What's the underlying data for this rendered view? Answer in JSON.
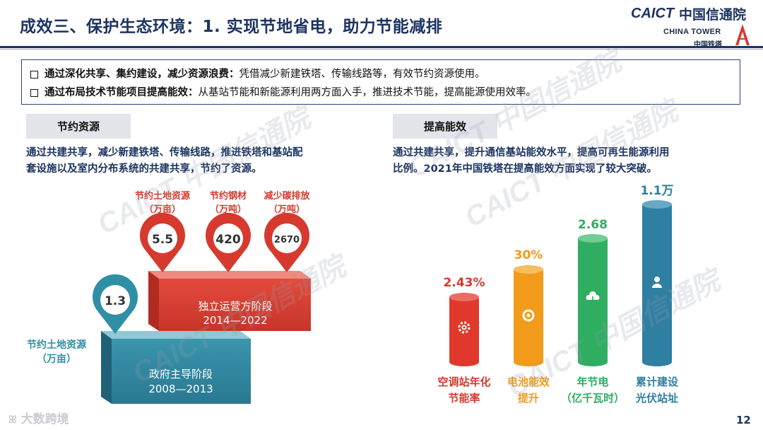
{
  "header": {
    "title": "成效三、保护生态环境：1. 实现节地省电，助力节能减排",
    "logo_caict": "CAICT",
    "logo_caict_cn": "中国信通院",
    "logo_tower": "CHINA TOWER",
    "logo_tower_cn": "中国铁塔"
  },
  "summary": {
    "items": [
      {
        "bold": "通过深化共享、集约建设，减少资源浪费：",
        "text": "凭借减少新建铁塔、传输线路等，有效节约资源使用。"
      },
      {
        "bold": "通过布局技术节能项目提高能效：",
        "text": "从基站节能和新能源利用两方面入手，推进技术节能，提高能源使用效率。"
      }
    ]
  },
  "left": {
    "tag": "节约资源",
    "text1": "通过共建共享，减少新建铁塔、传输线路，推进铁塔和基站配",
    "text2": "套设施以及室内分布系统的共建共享，节约了资源。",
    "stage_high": {
      "line1": "独立运营方阶段",
      "line2": "2014—2022"
    },
    "stage_low": {
      "line1": "政府主导阶段",
      "line2": "2008—2013"
    },
    "pins_high": [
      {
        "label1": "节约土地资源",
        "label2": "（万亩）",
        "value": "5.5"
      },
      {
        "label1": "节约钢材",
        "label2": "（万吨）",
        "value": "420"
      },
      {
        "label1": "减少碳排放",
        "label2": "（万吨）",
        "value": "2670"
      }
    ],
    "pin_low": {
      "label1": "节约土地资源",
      "label2": "（万亩）",
      "value": "1.3"
    }
  },
  "right": {
    "tag": "提高能效",
    "text1": "通过共建共享，提升通信基站能效水平，提高可再生能源利用",
    "text2": "比例。2021年中国铁塔在提高能效方面实现了较大突破。",
    "bars": [
      {
        "value": "2.43%",
        "label1": "空调站年化",
        "label2": "节能率",
        "color": "#e0392b",
        "icon": "gear-icon"
      },
      {
        "value": "30%",
        "label1": "电池能效",
        "label2": "提升",
        "color": "#f29a1a",
        "icon": "lifebuoy-icon"
      },
      {
        "value": "2.68",
        "label1": "年节电",
        "label2": "（亿千瓦时）",
        "color": "#2fae62",
        "icon": "cloud-download-icon"
      },
      {
        "value": "1.1万",
        "label1": "累计建设",
        "label2": "光伏站址",
        "color": "#2f7fa2",
        "icon": "person-icon"
      }
    ]
  },
  "footer": {
    "page": "12",
    "brand": "大数跨境"
  },
  "colors": {
    "navy": "#1d3461",
    "red": "#d63a2f",
    "teal": "#2f8fa5"
  }
}
